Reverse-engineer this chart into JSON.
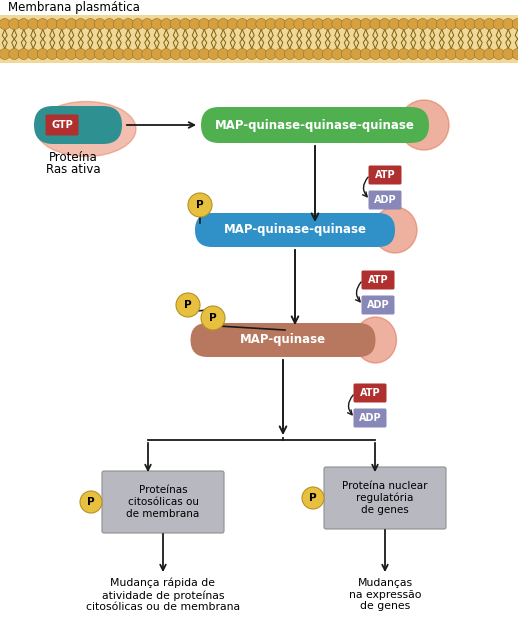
{
  "membrane_bg": "#F0D898",
  "membrane_label": "Membrana plasmática",
  "ras_color": "#2E9090",
  "ras_glow": "#E07050",
  "gtp_color": "#B03030",
  "gtp_text": "GTP",
  "ras_label1": "Proteína",
  "ras_label2": "Ras ativa",
  "mapkkk_color": "#50B050",
  "mapkkk_glow": "#E07050",
  "mapkkk_label": "MAP-quinase-quinase-quinase",
  "mapkk_color": "#3090C8",
  "mapkk_glow": "#E07050",
  "mapkk_label": "MAP-quinase-quinase",
  "mapk_color": "#B87860",
  "mapk_glow": "#E07050",
  "mapk_label": "MAP-quinase",
  "atp_color": "#B03030",
  "atp_text": "ATP",
  "adp_color": "#8888B8",
  "adp_text": "ADP",
  "p_color": "#E8C040",
  "p_text": "P",
  "box_color": "#B8B8C0",
  "box_edge": "#909090",
  "box1_label": "Proteínas\ncitosólicas ou\nde membrana",
  "box2_label": "Proteína nuclear\nregulatória\nde genes",
  "out1_label": "Mudança rápida de\natividade de proteínas\ncitosólicas ou de membrana",
  "out2_label": "Mudanças\nna expressão\nde genes",
  "bg_color": "#FFFFFF",
  "arrow_color": "#1a1a1a",
  "line_color": "#1a1a1a"
}
